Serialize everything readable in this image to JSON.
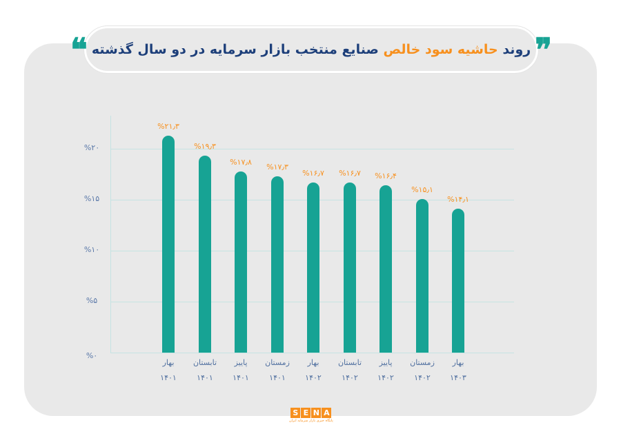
{
  "title": {
    "part1": "روند",
    "highlight": "حاشیه سود خالص",
    "part2": "صنایع منتخب بازار سرمایه در دو سال گذشته",
    "quote_open": "❞",
    "quote_close": "❝"
  },
  "colors": {
    "bar": "#17a394",
    "value_label": "#f7901e",
    "title": "#1d3f7a",
    "highlight": "#f7901e",
    "panel": "#e9e9e9",
    "grid": "#c5e3e2"
  },
  "y_axis": {
    "ticks": [
      {
        "label": "%۲۰",
        "value": 20
      },
      {
        "label": "%۱۵",
        "value": 15
      },
      {
        "label": "%۱۰",
        "value": 10
      },
      {
        "label": "%۵",
        "value": 5
      },
      {
        "label": "%۰",
        "value": 0
      }
    ]
  },
  "bars": [
    {
      "season": "بهار",
      "year": "۱۴۰۱",
      "value_label": "%۲۱٫۳"
    },
    {
      "season": "تابستان",
      "year": "۱۴۰۱",
      "value_label": "%۱۹٫۳"
    },
    {
      "season": "پاییز",
      "year": "۱۴۰۱",
      "value_label": "%۱۷٫۸"
    },
    {
      "season": "زمستان",
      "year": "۱۴۰۱",
      "value_label": "%۱۷٫۳"
    },
    {
      "season": "بهار",
      "year": "۱۴۰۲",
      "value_label": "%۱۶٫۷"
    },
    {
      "season": "تابستان",
      "year": "۱۴۰۲",
      "value_label": "%۱۶٫۷"
    },
    {
      "season": "پاییز",
      "year": "۱۴۰۲",
      "value_label": "%۱۶٫۴"
    },
    {
      "season": "زمستان",
      "year": "۱۴۰۲",
      "value_label": "%۱۵٫۱"
    },
    {
      "season": "بهار",
      "year": "۱۴۰۳",
      "value_label": "%۱۴٫۱"
    }
  ],
  "logo": {
    "letters": [
      "S",
      "E",
      "N",
      "A"
    ],
    "subtitle": "پایگاه خبری بازار سرمایه ایران"
  },
  "chart_data": {
    "type": "bar",
    "title": "روند حاشیه سود خالص صنایع منتخب بازار سرمایه در دو سال گذشته",
    "categories": [
      "بهار ۱۴۰۱",
      "تابستان ۱۴۰۱",
      "پاییز ۱۴۰۱",
      "زمستان ۱۴۰۱",
      "بهار ۱۴۰۲",
      "تابستان ۱۴۰۲",
      "پاییز ۱۴۰۲",
      "زمستان ۱۴۰۲",
      "بهار ۱۴۰۳"
    ],
    "values": [
      21.3,
      19.3,
      17.8,
      17.3,
      16.7,
      16.7,
      16.4,
      15.1,
      14.1
    ],
    "xlabel": "",
    "ylabel": "",
    "ylim": [
      0,
      20
    ],
    "yticks": [
      0,
      5,
      10,
      15,
      20
    ],
    "grid": true,
    "legend": null,
    "unit": "%"
  }
}
